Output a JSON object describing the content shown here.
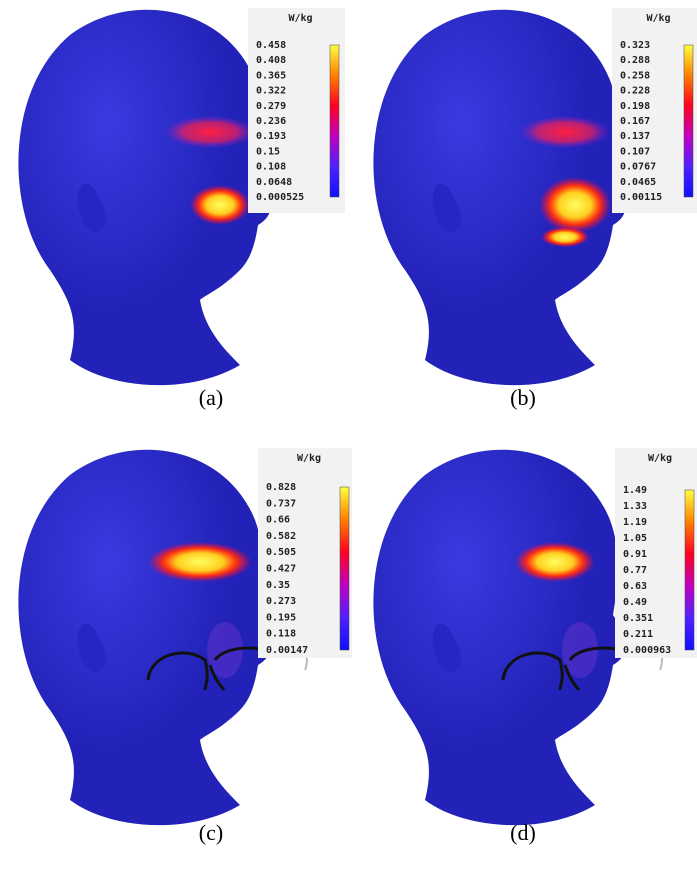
{
  "panels": [
    {
      "caption": "(a)",
      "unit": "W/kg",
      "scale": [
        "0.458",
        "0.408",
        "0.365",
        "0.322",
        "0.279",
        "0.236",
        "0.193",
        "0.15",
        "0.108",
        "0.0648",
        "0.000525"
      ]
    },
    {
      "caption": "(b)",
      "unit": "W/kg",
      "scale": [
        "0.323",
        "0.288",
        "0.258",
        "0.228",
        "0.198",
        "0.167",
        "0.137",
        "0.107",
        "0.0767",
        "0.0465",
        "0.00115"
      ]
    },
    {
      "caption": "(c)",
      "unit": "W/kg",
      "scale": [
        "0.828",
        "0.737",
        "0.66",
        "0.582",
        "0.505",
        "0.427",
        "0.35",
        "0.273",
        "0.195",
        "0.118",
        "0.00147"
      ]
    },
    {
      "caption": "(d)",
      "unit": "W/kg",
      "scale": [
        "1.49",
        "1.33",
        "1.19",
        "1.05",
        "0.91",
        "0.77",
        "0.63",
        "0.49",
        "0.351",
        "0.211",
        "0.000963"
      ]
    }
  ]
}
